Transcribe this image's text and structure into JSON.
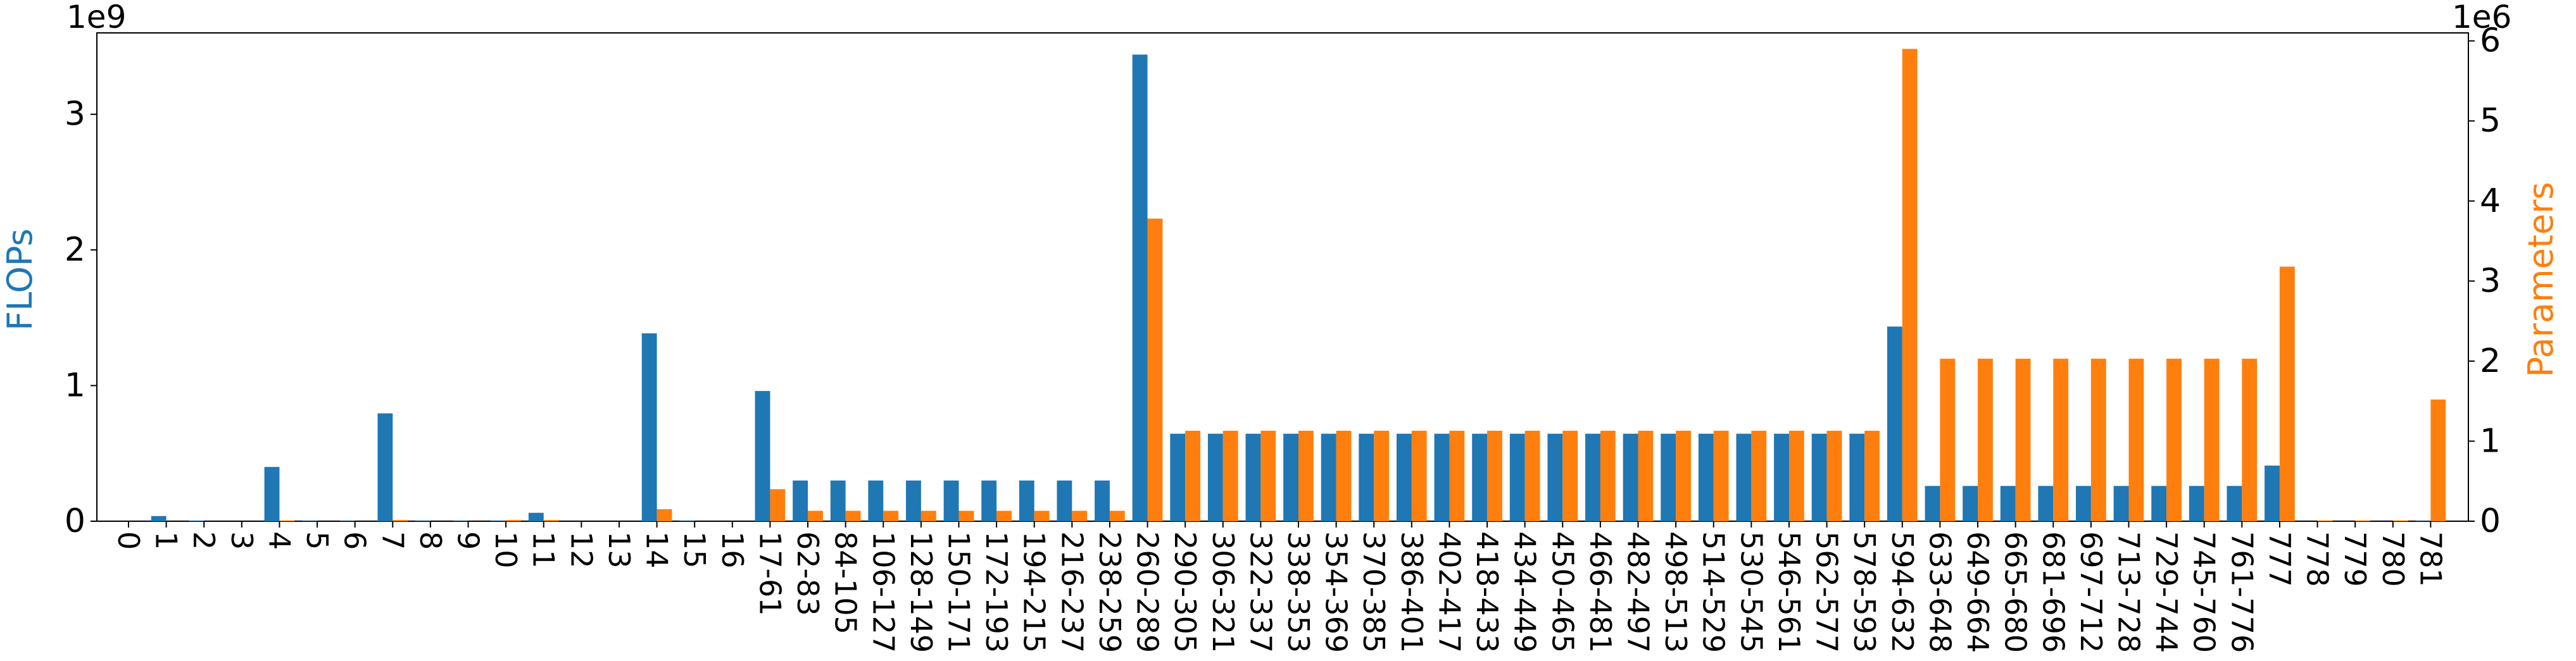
{
  "chart_data": {
    "type": "bar",
    "categories": [
      "0",
      "1",
      "2",
      "3",
      "4",
      "5",
      "6",
      "7",
      "8",
      "9",
      "10",
      "11",
      "12",
      "13",
      "14",
      "15",
      "16",
      "17-61",
      "62-83",
      "84-105",
      "106-127",
      "128-149",
      "150-171",
      "172-193",
      "194-215",
      "216-237",
      "238-259",
      "260-289",
      "290-305",
      "306-321",
      "322-337",
      "338-353",
      "354-369",
      "370-385",
      "386-401",
      "402-417",
      "418-433",
      "434-449",
      "450-465",
      "466-481",
      "482-497",
      "498-513",
      "514-529",
      "530-545",
      "546-561",
      "562-577",
      "578-593",
      "594-632",
      "633-648",
      "649-664",
      "665-680",
      "681-696",
      "697-712",
      "713-728",
      "729-744",
      "745-760",
      "761-776",
      "777",
      "778",
      "779",
      "780",
      "781"
    ],
    "series": [
      {
        "name": "FLOPs",
        "axis": "left",
        "color": "#1f77b4",
        "values": [
          0,
          38000000,
          5000000,
          0,
          400000000,
          3000000,
          3000000,
          795000000,
          3000000,
          3000000,
          3000000,
          62000000,
          0,
          0,
          1385000000,
          3000000,
          0,
          960000000,
          300000000,
          300000000,
          300000000,
          300000000,
          300000000,
          300000000,
          300000000,
          300000000,
          300000000,
          3440000000,
          645000000,
          645000000,
          645000000,
          645000000,
          645000000,
          645000000,
          645000000,
          645000000,
          645000000,
          645000000,
          645000000,
          645000000,
          645000000,
          645000000,
          645000000,
          645000000,
          645000000,
          645000000,
          645000000,
          1435000000,
          260000000,
          260000000,
          260000000,
          260000000,
          260000000,
          260000000,
          260000000,
          260000000,
          260000000,
          410000000,
          0,
          0,
          0,
          3000000
        ]
      },
      {
        "name": "Parameters",
        "axis": "right",
        "color": "#ff7f0e",
        "values": [
          0,
          0,
          0,
          0,
          10000,
          0,
          0,
          15000,
          0,
          0,
          15000,
          15000,
          0,
          0,
          150000,
          0,
          0,
          400000,
          130000,
          130000,
          130000,
          130000,
          130000,
          130000,
          130000,
          130000,
          130000,
          3780000,
          1130000,
          1130000,
          1130000,
          1130000,
          1130000,
          1130000,
          1130000,
          1130000,
          1130000,
          1130000,
          1130000,
          1130000,
          1130000,
          1130000,
          1130000,
          1130000,
          1130000,
          1130000,
          1130000,
          5900000,
          2030000,
          2030000,
          2030000,
          2030000,
          2030000,
          2030000,
          2030000,
          2030000,
          2030000,
          3180000,
          10000,
          10000,
          10000,
          1520000
        ]
      }
    ],
    "ylabel_left": "FLOPs",
    "ylabel_right": "Parameters",
    "y_left_offset_text": "1e9",
    "y_right_offset_text": "1e6",
    "y_left_scale": 1000000000,
    "y_right_scale": 1000000,
    "ylim_left": [
      0,
      3600000000
    ],
    "ylim_right": [
      0,
      6100000
    ],
    "y_left_ticks": [
      0,
      1,
      2,
      3
    ],
    "y_right_ticks": [
      0,
      1,
      2,
      3,
      4,
      5,
      6
    ],
    "grid": false,
    "legend": "none"
  }
}
